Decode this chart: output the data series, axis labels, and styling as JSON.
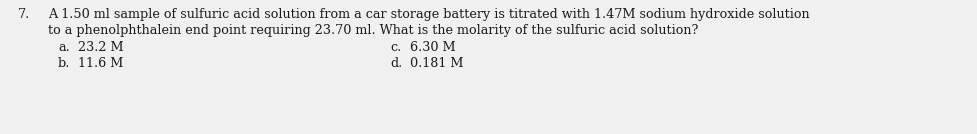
{
  "question_number": "7.",
  "question_line1": "A 1.50 ml sample of sulfuric acid solution from a car storage battery is titrated with 1.47M sodium hydroxide solution",
  "question_line2": "to a phenolphthalein end point requiring 23.70 ml. What is the molarity of the sulfuric acid solution?",
  "answer_a_label": "a.",
  "answer_a_text": "23.2 M",
  "answer_b_label": "b.",
  "answer_b_text": "11.6 M",
  "answer_c_label": "c.",
  "answer_c_text": "6.30 M",
  "answer_d_label": "d.",
  "answer_d_text": "0.181 M",
  "bg_color": "#f0f0f0",
  "text_color": "#1a1a1a",
  "font_size": 9.2,
  "fig_width": 9.77,
  "fig_height": 1.34,
  "dpi": 100
}
